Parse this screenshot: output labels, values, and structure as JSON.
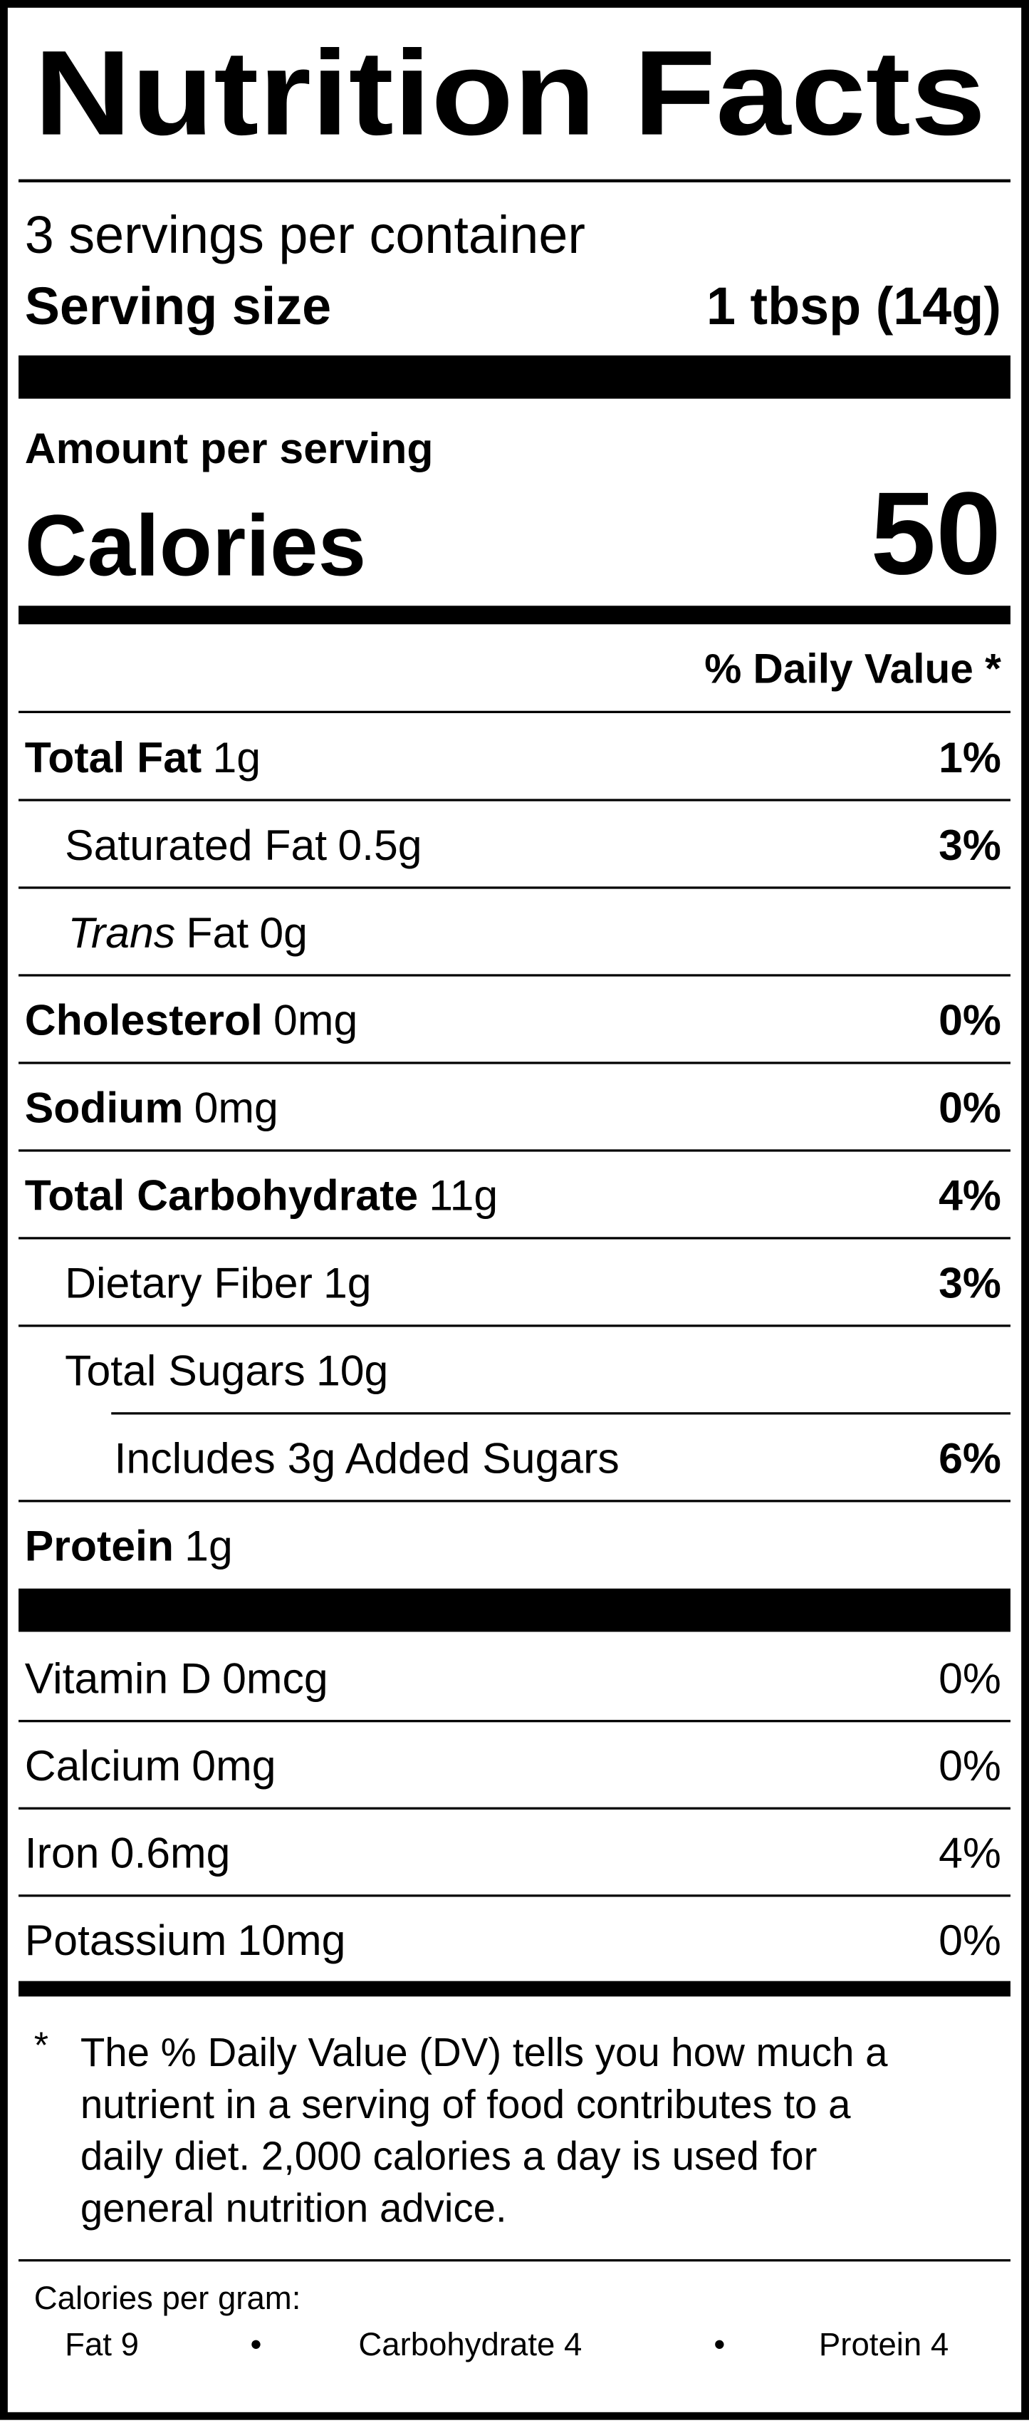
{
  "title": "Nutrition Facts",
  "servings": "3 servings per container",
  "serving_size": {
    "label": "Serving size",
    "value": "1 tbsp (14g)"
  },
  "amount_per_serving": "Amount per serving",
  "calories": {
    "label": "Calories",
    "value": "50"
  },
  "daily_value_header": "% Daily Value *",
  "nutrients": [
    {
      "name": "Total Fat",
      "amount": "1g",
      "dv": "1%"
    },
    {
      "name": "Saturated Fat",
      "amount": "0.5g",
      "dv": "3%"
    },
    {
      "name_italic": "Trans",
      "name": "Fat",
      "amount": "0g"
    },
    {
      "name": "Cholesterol",
      "amount": "0mg",
      "dv": "0%"
    },
    {
      "name": "Sodium",
      "amount": "0mg",
      "dv": "0%"
    },
    {
      "name": "Total Carbohydrate",
      "amount": "11g",
      "dv": "4%"
    },
    {
      "name": "Dietary Fiber",
      "amount": "1g",
      "dv": "3%"
    },
    {
      "name": "Total Sugars",
      "amount": "10g"
    },
    {
      "name": "Includes 3g Added Sugars",
      "dv": "6%"
    },
    {
      "name": "Protein",
      "amount": "1g"
    }
  ],
  "vitamins": [
    {
      "name": "Vitamin D",
      "amount": "0mcg",
      "dv": "0%"
    },
    {
      "name": "Calcium",
      "amount": "0mg",
      "dv": "0%"
    },
    {
      "name": "Iron",
      "amount": "0.6mg",
      "dv": "4%"
    },
    {
      "name": "Potassium",
      "amount": "10mg",
      "dv": "0%"
    }
  ],
  "footnote": {
    "marker": "*",
    "lines": [
      "The % Daily Value (DV) tells you how much a",
      "nutrient in a serving of food contributes to a",
      "daily diet. 2,000 calories a day is used for",
      "general nutrition advice."
    ]
  },
  "calories_per_gram": {
    "label": "Calories per gram:",
    "separator": "•",
    "items": [
      "Fat 9",
      "Carbohydrate 4",
      "Protein 4"
    ]
  }
}
